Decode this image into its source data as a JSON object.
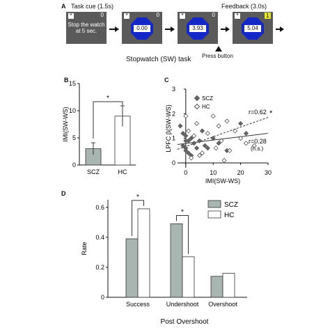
{
  "panel_a": {
    "label": "A",
    "task_cue_label": "Task cue (1.5s)",
    "feedback_label": "Feedback (3.0s)",
    "cue_message": "Stop the watch at 5 sec.",
    "star_symbol": "*",
    "screens": [
      {
        "counter": "0",
        "display": ""
      },
      {
        "counter": "0",
        "display": "0.00"
      },
      {
        "counter": "0",
        "display": "3.93"
      },
      {
        "counter": "1",
        "display": "5.04"
      }
    ],
    "press_button_label": "Press button",
    "title": "Stopwatch (SW) task",
    "screen_color": "#5a5a5a",
    "octagon_color": "#1428c8",
    "counter_highlight": "#e6e629"
  },
  "panel_b": {
    "label": "B",
    "chart_data": {
      "type": "bar",
      "categories": [
        "SCZ",
        "HC"
      ],
      "values": [
        3,
        9
      ],
      "errors": [
        1.1,
        1.9
      ],
      "colors": [
        "#a9b5b0",
        "#ffffff"
      ],
      "ylabel": "IMI(SW-WS)",
      "ylim": [
        0,
        15
      ],
      "yticks": [
        "0",
        "5",
        "10",
        "15"
      ],
      "significance": "*"
    }
  },
  "panel_c": {
    "label": "C",
    "chart_data": {
      "type": "scatter",
      "xlabel": "IMI(SW-WS)",
      "ylabel": "LPFC β(SW-WS)",
      "xlim": [
        -3,
        30
      ],
      "ylim": [
        -0.2,
        3
      ],
      "xticks": [
        "0",
        "10",
        "20",
        "30"
      ],
      "yticks": [
        "0",
        "1",
        "2",
        "3"
      ],
      "legend_position": "top-left",
      "series": [
        {
          "name": "SCZ",
          "marker": "filled-diamond",
          "points": [
            [
              -2,
              1.5
            ],
            [
              -1,
              1.2
            ],
            [
              -1,
              0.7
            ],
            [
              0,
              1.1
            ],
            [
              0,
              0.9
            ],
            [
              0,
              0.6
            ],
            [
              0,
              0.5
            ],
            [
              1,
              0.9
            ],
            [
              1,
              0.4
            ],
            [
              2,
              1.0
            ],
            [
              2,
              0.3
            ],
            [
              3,
              0.8
            ],
            [
              4,
              0.6
            ],
            [
              5,
              0.9
            ],
            [
              6,
              1.3
            ],
            [
              7,
              0.7
            ],
            [
              8,
              0.6
            ],
            [
              10,
              1.0
            ],
            [
              12,
              0.8
            ],
            [
              15,
              0.5
            ],
            [
              20,
              1.6
            ],
            [
              22,
              1.2
            ]
          ]
        },
        {
          "name": "HC",
          "marker": "open-diamond",
          "points": [
            [
              0,
              1.9
            ],
            [
              1,
              1.3
            ],
            [
              2,
              0.2
            ],
            [
              3,
              1.1
            ],
            [
              4,
              1.6
            ],
            [
              5,
              0.3
            ],
            [
              6,
              0.4
            ],
            [
              8,
              1.2
            ],
            [
              10,
              1.9
            ],
            [
              11,
              0.6
            ],
            [
              12,
              1.5
            ],
            [
              13,
              0.9
            ],
            [
              15,
              1.7
            ],
            [
              16,
              0.5
            ],
            [
              18,
              1.3
            ],
            [
              20,
              1.0
            ],
            [
              22,
              0.8
            ],
            [
              25,
              0.7
            ],
            [
              14,
              0.1
            ]
          ]
        }
      ],
      "fits": [
        {
          "series": "HC",
          "style": "dashed",
          "from": [
            -3,
            0.55
          ],
          "to": [
            30,
            1.85
          ],
          "label": "r=0.62",
          "star": "*"
        },
        {
          "series": "SCZ",
          "style": "solid",
          "from": [
            -3,
            0.75
          ],
          "to": [
            30,
            1.2
          ],
          "label": "r=0.28",
          "note": "(n.s.)"
        }
      ]
    }
  },
  "panel_d": {
    "label": "D",
    "chart_data": {
      "type": "bar",
      "categories": [
        "Success",
        "Undershoot",
        "Overshoot"
      ],
      "series": [
        {
          "name": "SCZ",
          "values": [
            0.39,
            0.49,
            0.14
          ],
          "color": "#a9b5b0"
        },
        {
          "name": "HC",
          "values": [
            0.59,
            0.27,
            0.16
          ],
          "color": "#ffffff"
        }
      ],
      "ylabel": "Rate",
      "xlabel": "Post Overshoot",
      "ylim": [
        0,
        0.65
      ],
      "yticks": [
        "0",
        "0.2",
        "0.4",
        "0.6"
      ],
      "legend_position": "top-right",
      "significance": [
        {
          "category": "Success",
          "mark": "*"
        },
        {
          "category": "Undershoot",
          "mark": "*"
        }
      ]
    }
  }
}
